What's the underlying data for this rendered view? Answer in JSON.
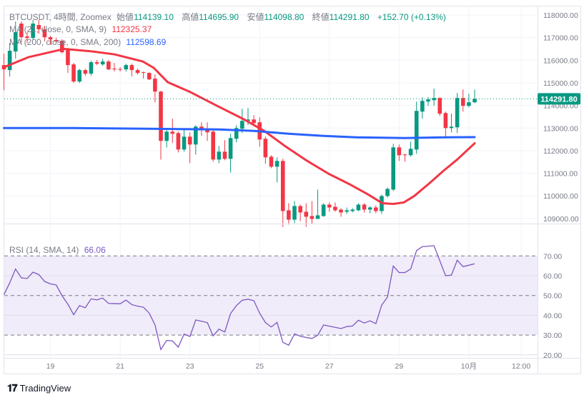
{
  "legend": {
    "symbol": "BTCUSDT, 4時間, Zoomex",
    "open_label": "始値",
    "open": "114139.10",
    "high_label": "高値",
    "high": "114695.90",
    "low_label": "安値",
    "low": "114098.80",
    "close_label": "終値",
    "close": "114291.80",
    "change": "+152.70 (+0.13%)",
    "ma21_label": "MA (21, close, 0, SMA, 9)",
    "ma21_value": "112325.37",
    "ma200_label": "MA (200, close, 0, SMA, 200)",
    "ma200_value": "112598.69",
    "rsi_label": "RSI (14, SMA, 14)",
    "rsi_value": "66.06"
  },
  "last_price_label": "114291.80",
  "brand": "TradingView",
  "colors": {
    "up": "#089981",
    "down": "#f23645",
    "ma21": "#f23645",
    "ma200": "#2962ff",
    "rsi": "#7e57c2",
    "rsi_band": "#f0ecf9"
  },
  "chart_data": [
    {
      "type": "candlestick",
      "title": "BTCUSDT, 4時間, Zoomex",
      "ylim": [
        108400,
        118300
      ],
      "yticks": [
        "118000.00",
        "117000.00",
        "116000.00",
        "115000.00",
        "114000.00",
        "113000.00",
        "112000.00",
        "111000.00",
        "110000.00",
        "109000.00"
      ],
      "ytick_values": [
        118000,
        117000,
        116000,
        115000,
        114000,
        113000,
        112000,
        111000,
        110000,
        109000
      ],
      "xticks": [
        {
          "label": "19",
          "index": 8
        },
        {
          "label": "21",
          "index": 20
        },
        {
          "label": "23",
          "index": 32
        },
        {
          "label": "25",
          "index": 44
        },
        {
          "label": "27",
          "index": 56
        },
        {
          "label": "29",
          "index": 68
        },
        {
          "label": "10月",
          "index": 80
        },
        {
          "label": "12:00",
          "index": 89
        }
      ],
      "ohlc": [
        [
          115785,
          116291,
          114677,
          115595
        ],
        [
          115563,
          116765,
          115278,
          116418
        ],
        [
          116386,
          117715,
          116069,
          117240
        ],
        [
          117620,
          117715,
          116797,
          117019
        ],
        [
          117051,
          117240,
          116766,
          116987
        ],
        [
          116987,
          117778,
          116892,
          117620
        ],
        [
          117557,
          117778,
          117177,
          117367
        ],
        [
          117367,
          117525,
          116829,
          117019
        ],
        [
          117019,
          117082,
          116702,
          116924
        ],
        [
          116892,
          116987,
          116766,
          116829
        ],
        [
          116861,
          116924,
          116291,
          116354
        ],
        [
          116449,
          116544,
          115436,
          115785
        ],
        [
          115816,
          115880,
          114993,
          115057
        ],
        [
          115057,
          115626,
          114993,
          115563
        ],
        [
          115563,
          115626,
          115310,
          115405
        ],
        [
          115405,
          115974,
          115310,
          115911
        ],
        [
          115911,
          116006,
          115785,
          115848
        ],
        [
          115816,
          116069,
          115753,
          115943
        ],
        [
          115943,
          116006,
          115563,
          115595
        ],
        [
          115626,
          115880,
          115500,
          115595
        ],
        [
          115610,
          115690,
          115500,
          115595
        ],
        [
          115595,
          115848,
          115500,
          115785
        ],
        [
          115785,
          115848,
          115278,
          115563
        ],
        [
          115563,
          115626,
          115373,
          115436
        ],
        [
          115468,
          115500,
          115183,
          115436
        ],
        [
          115436,
          115468,
          115120,
          115152
        ],
        [
          115183,
          115373,
          114139,
          114613
        ],
        [
          114613,
          114645,
          111607,
          112430
        ],
        [
          112430,
          112968,
          112145,
          112841
        ],
        [
          112841,
          113411,
          112335,
          112746
        ],
        [
          112778,
          112841,
          111923,
          112050
        ],
        [
          112050,
          112968,
          111955,
          112619
        ],
        [
          112619,
          112809,
          111449,
          112271
        ],
        [
          112271,
          113126,
          111828,
          113063
        ],
        [
          113063,
          113253,
          112651,
          112904
        ],
        [
          112936,
          113253,
          112430,
          112809
        ],
        [
          112841,
          112904,
          111512,
          111607
        ],
        [
          111607,
          112208,
          111449,
          111955
        ],
        [
          111955,
          112462,
          111575,
          111639
        ],
        [
          111639,
          112746,
          111037,
          112556
        ],
        [
          112525,
          113126,
          112367,
          112999
        ],
        [
          112968,
          113854,
          112778,
          113316
        ],
        [
          113316,
          113886,
          113126,
          113379
        ],
        [
          113379,
          113569,
          113158,
          113221
        ],
        [
          113253,
          113474,
          112177,
          112493
        ],
        [
          112525,
          112620,
          111417,
          111702
        ],
        [
          111733,
          111797,
          111227,
          111290
        ],
        [
          111290,
          111702,
          110594,
          111544
        ],
        [
          111544,
          111639,
          108632,
          109328
        ],
        [
          109360,
          109676,
          108727,
          108948
        ],
        [
          108948,
          109771,
          108790,
          109550
        ],
        [
          109550,
          109613,
          108885,
          109265
        ],
        [
          109297,
          109676,
          108632,
          109075
        ],
        [
          109107,
          109771,
          108758,
          108980
        ],
        [
          108980,
          110277,
          108980,
          109138
        ],
        [
          109107,
          109676,
          109075,
          109613
        ],
        [
          109613,
          109708,
          109297,
          109487
        ],
        [
          109518,
          109708,
          109297,
          109360
        ],
        [
          109392,
          109455,
          109075,
          109265
        ],
        [
          109297,
          109487,
          109202,
          109360
        ],
        [
          109328,
          109455,
          109265,
          109392
        ],
        [
          109360,
          109676,
          109328,
          109613
        ],
        [
          109613,
          109676,
          109265,
          109392
        ],
        [
          109392,
          109550,
          109233,
          109487
        ],
        [
          109487,
          109580,
          109233,
          109328
        ],
        [
          109328,
          110056,
          109202,
          109993
        ],
        [
          109993,
          110372,
          109930,
          110309
        ],
        [
          110277,
          112303,
          110214,
          112145
        ],
        [
          112145,
          112271,
          111544,
          111797
        ],
        [
          111828,
          111860,
          111512,
          111810
        ],
        [
          111797,
          112398,
          111733,
          112082
        ],
        [
          112050,
          114170,
          111860,
          113759
        ],
        [
          113727,
          114360,
          113411,
          114202
        ],
        [
          114170,
          114360,
          113980,
          114265
        ],
        [
          114234,
          114740,
          113980,
          114329
        ],
        [
          114329,
          114360,
          113537,
          113632
        ],
        [
          113664,
          113727,
          112619,
          112999
        ],
        [
          112999,
          113632,
          112809,
          113063
        ],
        [
          113031,
          114550,
          112778,
          114329
        ],
        [
          114329,
          114708,
          113727,
          113980
        ],
        [
          113980,
          114518,
          113917,
          114139
        ],
        [
          114139.1,
          114695.9,
          114098.8,
          114291.8
        ]
      ],
      "last_price": 114291.8,
      "series": [
        {
          "name": "MA (21, close, 0, SMA, 9)",
          "points": [
            [
              0,
              115690
            ],
            [
              4.2,
              116133
            ],
            [
              10.4,
              116500
            ],
            [
              15.3,
              116386
            ],
            [
              19,
              116260
            ],
            [
              23.9,
              115943
            ],
            [
              25.8,
              115658
            ],
            [
              28.2,
              115025
            ],
            [
              31.9,
              114613
            ],
            [
              36.2,
              114044
            ],
            [
              41.1,
              113411
            ],
            [
              44.8,
              112873
            ],
            [
              48.5,
              112177
            ],
            [
              52.2,
              111544
            ],
            [
              55.9,
              110974
            ],
            [
              59.6,
              110499
            ],
            [
              62.7,
              110056
            ],
            [
              65.1,
              109676
            ],
            [
              67,
              109644
            ],
            [
              68.8,
              109708
            ],
            [
              70.6,
              109993
            ],
            [
              73.1,
              110531
            ],
            [
              75.6,
              111101
            ],
            [
              78,
              111607
            ],
            [
              81,
              112325.37
            ]
          ]
        },
        {
          "name": "MA (200, close, 0, SMA, 200)",
          "points": [
            [
              0,
              112999
            ],
            [
              12,
              112999
            ],
            [
              25,
              112968
            ],
            [
              37,
              112936
            ],
            [
              43,
              112873
            ],
            [
              49,
              112746
            ],
            [
              55,
              112651
            ],
            [
              61,
              112587
            ],
            [
              69,
              112556
            ],
            [
              75,
              112587
            ],
            [
              81,
              112598.69
            ]
          ]
        }
      ]
    },
    {
      "type": "line",
      "title": "RSI (14, SMA, 14)",
      "ylim": [
        19,
        86
      ],
      "yticks": [
        "70.00",
        "60.00",
        "50.00",
        "40.00",
        "30.00",
        "20.00"
      ],
      "ytick_values": [
        70,
        60,
        50,
        40,
        30,
        20
      ],
      "band": [
        30,
        70
      ],
      "dashed_levels": [
        70,
        50,
        30
      ],
      "values": [
        50.4,
        56.4,
        63.4,
        58.9,
        58.6,
        61.8,
        60.6,
        57.1,
        55.9,
        55.3,
        49.9,
        45.6,
        40.3,
        44.9,
        43.8,
        48.3,
        47.8,
        48.7,
        46.0,
        45.9,
        45.8,
        47.7,
        45.4,
        44.6,
        44.1,
        41.1,
        35.1,
        22.7,
        27.3,
        27.0,
        23.9,
        30.5,
        29.3,
        37.6,
        37.0,
        36.3,
        29.6,
        33.0,
        31.6,
        40.9,
        44.9,
        47.6,
        48.1,
        47.4,
        41.1,
        36.3,
        34.1,
        36.4,
        26.3,
        24.9,
        30.6,
        29.4,
        28.8,
        28.3,
        29.9,
        35.1,
        34.5,
        33.9,
        33.3,
        34.3,
        34.6,
        37.5,
        36.1,
        37.2,
        35.8,
        45.1,
        49.2,
        64.9,
        61.6,
        61.6,
        63.4,
        72.7,
        74.7,
        74.9,
        75.2,
        67.6,
        60.0,
        60.3,
        67.8,
        64.6,
        65.3,
        66.06
      ]
    }
  ]
}
